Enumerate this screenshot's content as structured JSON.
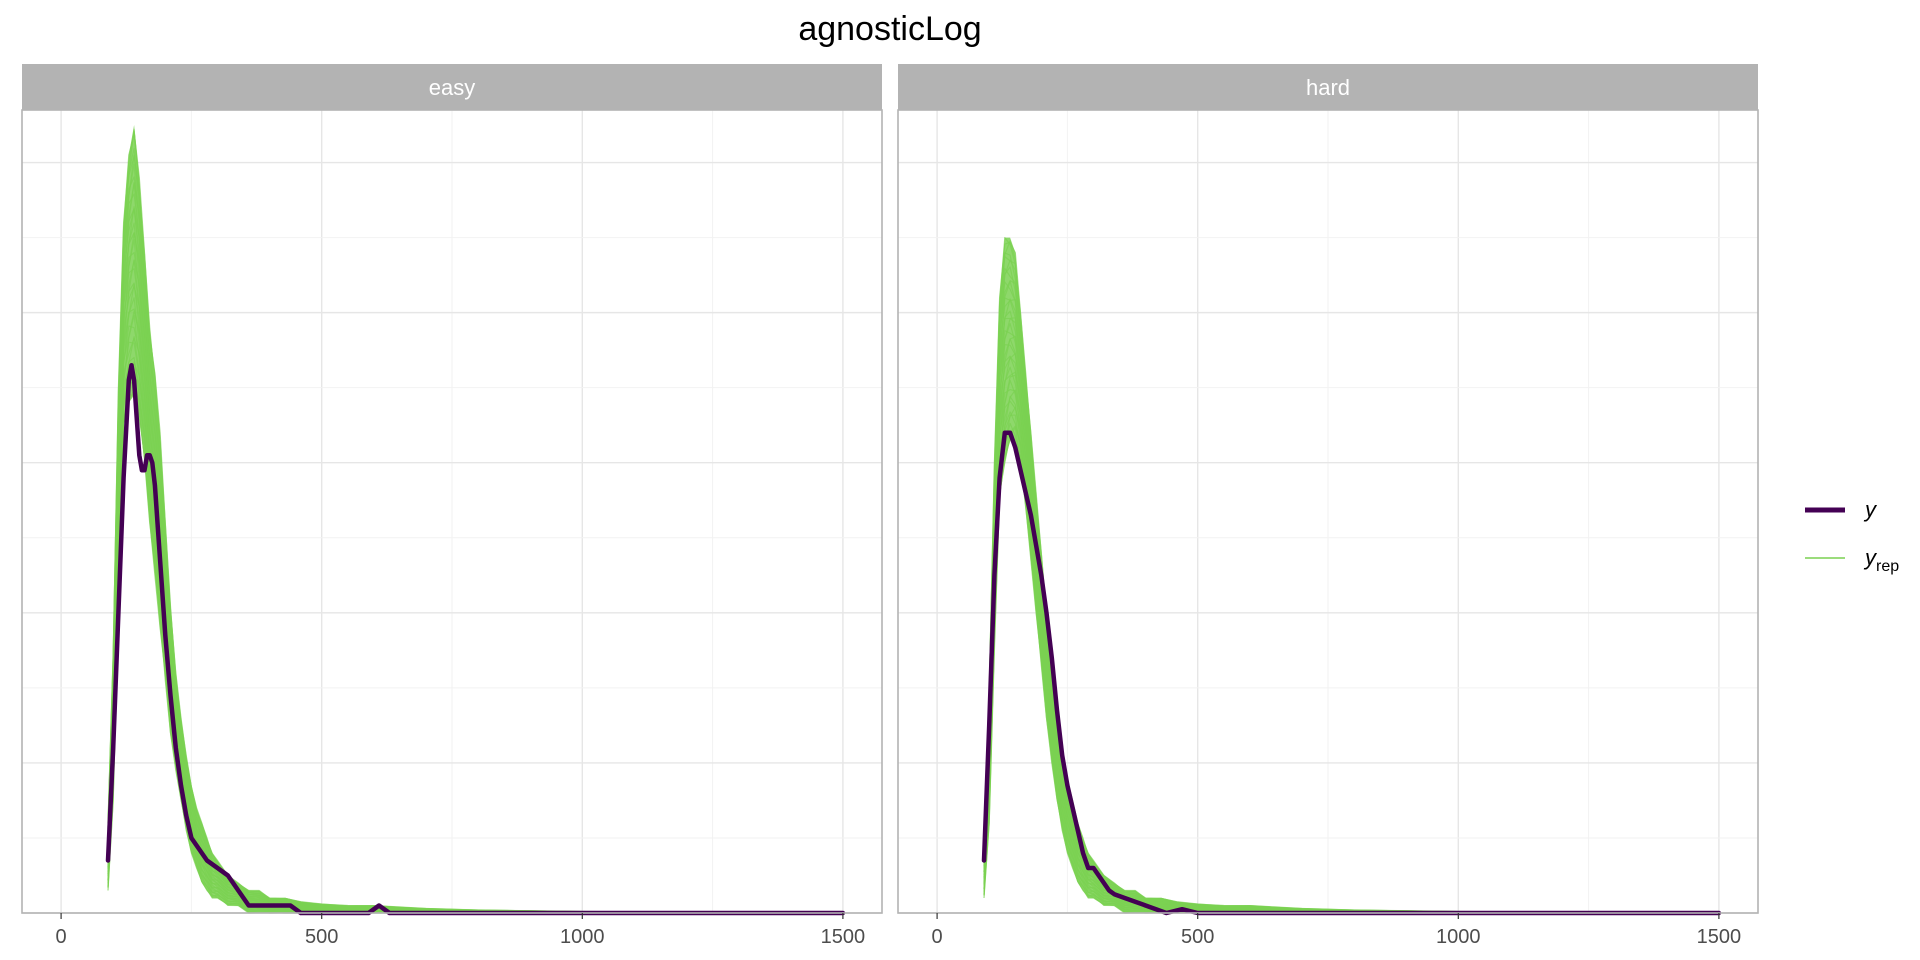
{
  "chart_data": {
    "type": "line",
    "title": "agnosticLog",
    "xlabel": "",
    "ylabel": "",
    "xlim": [
      -75,
      1575
    ],
    "x_ticks": [
      0,
      500,
      1000,
      1500
    ],
    "x_tick_labels": [
      "0",
      "500",
      "1000",
      "1500"
    ],
    "grid": true,
    "legend_position": "right",
    "legend": [
      {
        "label": "y",
        "color": "#440154",
        "style": "thick"
      },
      {
        "label": "y",
        "sub": "rep",
        "color": "#7ad151",
        "style": "thin"
      }
    ],
    "colors": {
      "y": "#440154",
      "yrep": "#7ad151",
      "strip_bg": "#b3b3b3",
      "panel_border": "#b3b3b3",
      "grid": "#ebebeb"
    },
    "panels": [
      {
        "label": "easy",
        "ylim": [
          0,
          0.0107
        ],
        "y": {
          "name": "y",
          "x": [
            90,
            100,
            110,
            120,
            130,
            135,
            140,
            145,
            150,
            155,
            160,
            165,
            170,
            175,
            180,
            185,
            190,
            200,
            210,
            220,
            230,
            240,
            250,
            260,
            270,
            280,
            300,
            320,
            340,
            360,
            380,
            400,
            420,
            440,
            460,
            500,
            550,
            590,
            610,
            630,
            660,
            700,
            800,
            1000,
            1200,
            1500
          ],
          "values": [
            0.0007,
            0.0022,
            0.004,
            0.0058,
            0.0071,
            0.0073,
            0.0071,
            0.0066,
            0.0061,
            0.0059,
            0.0059,
            0.0061,
            0.0061,
            0.006,
            0.0057,
            0.0052,
            0.0047,
            0.0037,
            0.0029,
            0.0022,
            0.0017,
            0.0013,
            0.001,
            0.0009,
            0.0008,
            0.0007,
            0.0006,
            0.0005,
            0.0003,
            0.0001,
            0.0001,
            0.0001,
            0.0001,
            0.0001,
            0.0,
            0.0,
            0.0,
            0.0,
            0.0001,
            0.0,
            0.0,
            0.0,
            0.0,
            0.0,
            0.0,
            0.0
          ]
        },
        "yrep_envelope": {
          "name": "yrep",
          "x": [
            90,
            100,
            110,
            120,
            130,
            140,
            150,
            160,
            170,
            180,
            190,
            200,
            210,
            220,
            230,
            240,
            250,
            260,
            270,
            280,
            290,
            300,
            320,
            340,
            360,
            380,
            400,
            430,
            460,
            500,
            550,
            600,
            650,
            700,
            800,
            900,
            1000,
            1200,
            1500
          ],
          "lower": [
            0.0003,
            0.0015,
            0.004,
            0.0065,
            0.0068,
            0.0069,
            0.0066,
            0.006,
            0.0052,
            0.0045,
            0.0038,
            0.0031,
            0.0024,
            0.0019,
            0.0015,
            0.0011,
            0.0008,
            0.0006,
            0.0004,
            0.0003,
            0.0002,
            0.0002,
            0.0001,
            0.0001,
            0.0,
            0.0,
            0.0,
            0.0,
            0.0,
            0.0,
            0.0,
            0.0,
            0.0,
            0.0,
            0.0,
            0.0,
            0.0,
            0.0,
            0.0
          ],
          "upper": [
            0.0012,
            0.0035,
            0.007,
            0.0092,
            0.0101,
            0.0105,
            0.0098,
            0.0088,
            0.0078,
            0.0072,
            0.0064,
            0.0052,
            0.0041,
            0.0032,
            0.0026,
            0.0021,
            0.0017,
            0.0014,
            0.0012,
            0.001,
            0.0008,
            0.0007,
            0.0005,
            0.0004,
            0.0003,
            0.0003,
            0.0002,
            0.0002,
            0.00015,
            0.00012,
            0.0001,
            0.0001,
            8e-05,
            6e-05,
            4e-05,
            3e-05,
            2e-05,
            1e-05,
            0.0
          ]
        }
      },
      {
        "label": "hard",
        "ylim": [
          0,
          0.0107
        ],
        "y": {
          "name": "y",
          "x": [
            90,
            100,
            110,
            120,
            130,
            140,
            150,
            160,
            170,
            180,
            190,
            200,
            210,
            220,
            230,
            240,
            250,
            260,
            270,
            280,
            290,
            300,
            310,
            320,
            330,
            340,
            360,
            380,
            400,
            420,
            440,
            470,
            500,
            550,
            600,
            700,
            800,
            1000,
            1200,
            1500
          ],
          "values": [
            0.0007,
            0.0025,
            0.0045,
            0.0058,
            0.0064,
            0.0064,
            0.0062,
            0.0059,
            0.0056,
            0.0053,
            0.0049,
            0.0045,
            0.004,
            0.0034,
            0.0027,
            0.0021,
            0.0017,
            0.0014,
            0.0011,
            0.0008,
            0.0006,
            0.0006,
            0.0005,
            0.0004,
            0.0003,
            0.00025,
            0.0002,
            0.00015,
            0.0001,
            5e-05,
            0.0,
            5e-05,
            0.0,
            0.0,
            0.0,
            0.0,
            0.0,
            0.0,
            0.0,
            0.0
          ]
        },
        "yrep_envelope": {
          "name": "yrep",
          "x": [
            90,
            100,
            110,
            120,
            130,
            140,
            150,
            160,
            170,
            180,
            190,
            200,
            210,
            220,
            230,
            240,
            250,
            260,
            270,
            280,
            290,
            300,
            320,
            340,
            360,
            380,
            400,
            430,
            460,
            500,
            550,
            600,
            650,
            700,
            800,
            900,
            1000,
            1200,
            1500
          ],
          "lower": [
            0.0002,
            0.0012,
            0.0035,
            0.0055,
            0.006,
            0.0063,
            0.0063,
            0.006,
            0.0054,
            0.0047,
            0.004,
            0.0033,
            0.0026,
            0.002,
            0.0015,
            0.0011,
            0.0008,
            0.0006,
            0.0004,
            0.0003,
            0.0002,
            0.0002,
            0.0001,
            0.0001,
            0.0,
            0.0,
            0.0,
            0.0,
            0.0,
            0.0,
            0.0,
            0.0,
            0.0,
            0.0,
            0.0,
            0.0,
            0.0,
            0.0,
            0.0
          ],
          "upper": [
            0.001,
            0.003,
            0.006,
            0.0082,
            0.009,
            0.009,
            0.0088,
            0.008,
            0.0072,
            0.0064,
            0.0056,
            0.0048,
            0.004,
            0.0033,
            0.0027,
            0.0022,
            0.0018,
            0.0015,
            0.0012,
            0.001,
            0.0008,
            0.0007,
            0.0005,
            0.0004,
            0.0003,
            0.0003,
            0.0002,
            0.0002,
            0.00015,
            0.00012,
            0.0001,
            0.0001,
            8e-05,
            6e-05,
            4e-05,
            3e-05,
            2e-05,
            1e-05,
            0.0
          ]
        }
      }
    ]
  }
}
